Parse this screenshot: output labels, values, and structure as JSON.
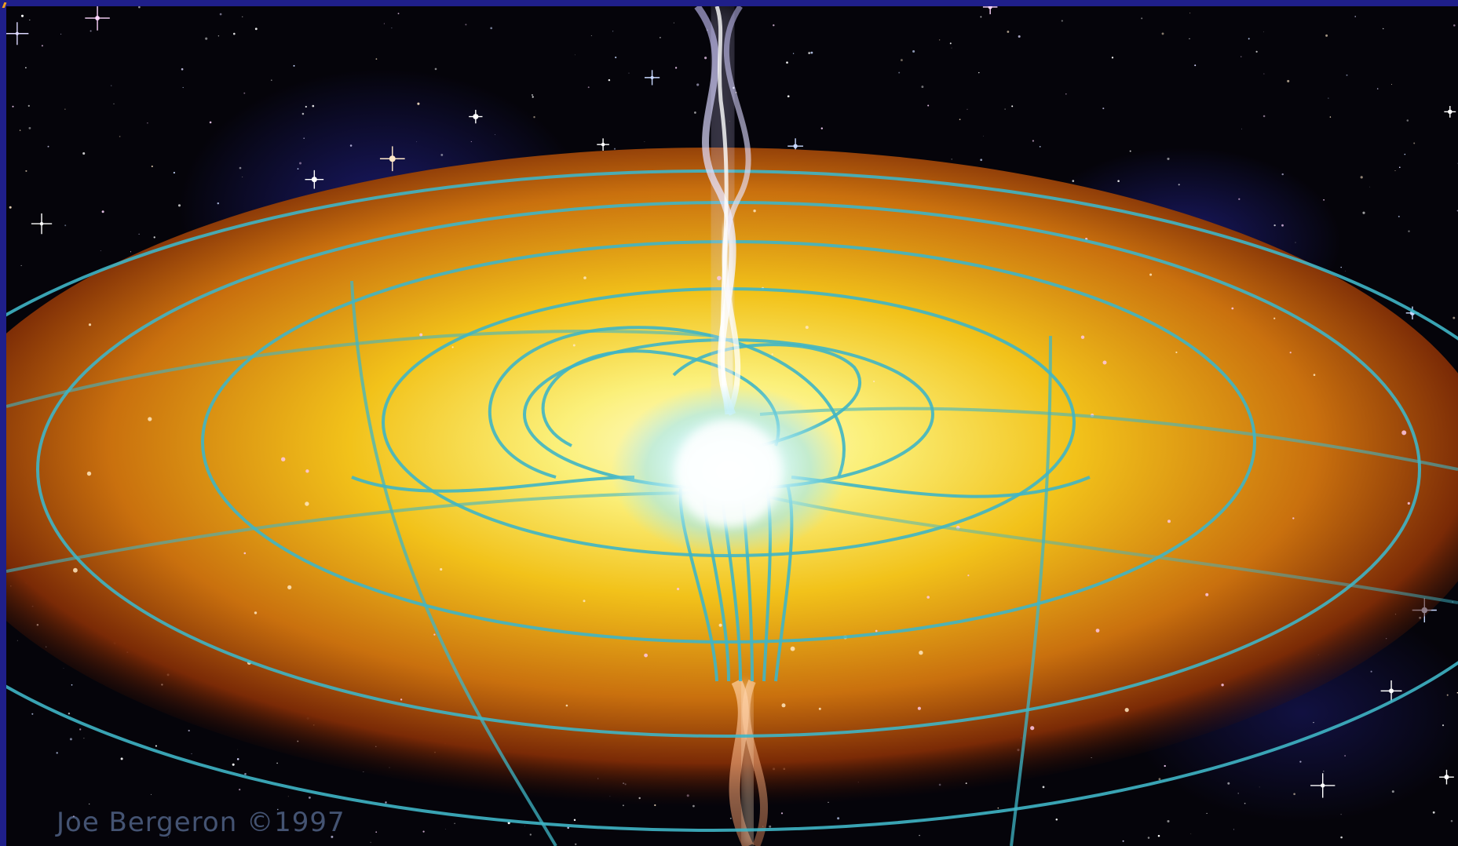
{
  "colors": {
    "frame": "#1f1f8a",
    "accent": "#f0a020",
    "space": "#05040a",
    "disk_core": "#fffbd0",
    "disk_mid": "#f2c21a",
    "disk_outer": "#b04a08",
    "field_lines": "#3fb5c5",
    "jet": "#d8e4ff"
  },
  "credit": {
    "text": "Joe Bergeron ©1997"
  },
  "icons": {
    "accent_mark": "corner-slash-icon"
  }
}
